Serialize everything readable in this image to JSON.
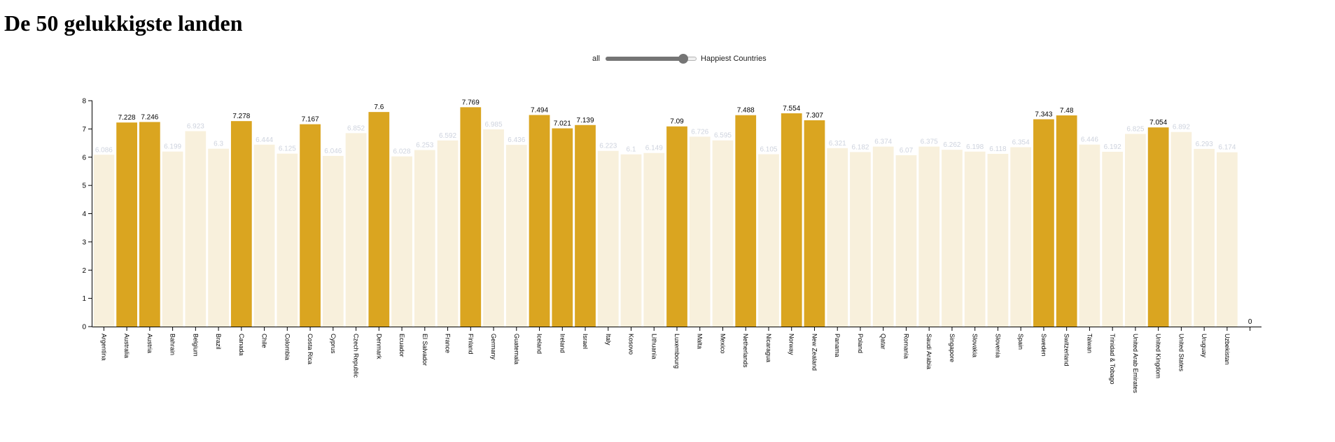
{
  "page": {
    "title": "De 50 gelukkigste landen"
  },
  "slider": {
    "left_label": "all",
    "right_label": "Happiest Countries",
    "position": 0.85
  },
  "colors": {
    "highlight": "#DAA520",
    "regular": "#F8F0DC",
    "value_label_highlight": "#000000",
    "value_label_regular": "#CED3DE",
    "axis": "#000000"
  },
  "chart_data": {
    "type": "bar",
    "title": "",
    "xlabel": "",
    "ylabel": "",
    "ylim": [
      0,
      8
    ],
    "yticks": [
      0,
      1,
      2,
      3,
      4,
      5,
      6,
      7,
      8
    ],
    "grid": false,
    "categories": [
      "Argentina",
      "Australia",
      "Austria",
      "Bahrain",
      "Belgium",
      "Brazil",
      "Canada",
      "Chile",
      "Colombia",
      "Costa Rica",
      "Cyprus",
      "Czech Republic",
      "Denmark",
      "Ecuador",
      "El Salvador",
      "France",
      "Finland",
      "Germany",
      "Guatemala",
      "Iceland",
      "Ireland",
      "Israel",
      "Italy",
      "Kosovo",
      "Lithuania",
      "Luxembourg",
      "Malta",
      "Mexico",
      "Netherlands",
      "Nicaragua",
      "Norway",
      "New Zealand",
      "Panama",
      "Poland",
      "Qatar",
      "Romania",
      "Saudi Arabia",
      "Singapore",
      "Slovakia",
      "Slovenia",
      "Spain",
      "Sweden",
      "Switzerland",
      "Taiwan",
      "Trinidad & Tobago",
      "United Arab Emirates",
      "United Kingdom",
      "United States",
      "Uruguay",
      "Uzbekistan",
      ""
    ],
    "values": [
      6.086,
      7.228,
      7.246,
      6.199,
      6.923,
      6.3,
      7.278,
      6.444,
      6.125,
      7.167,
      6.046,
      6.852,
      7.6,
      6.028,
      6.253,
      6.592,
      7.769,
      6.985,
      6.436,
      7.494,
      7.021,
      7.139,
      6.223,
      6.1,
      6.149,
      7.09,
      6.726,
      6.595,
      7.488,
      6.105,
      7.554,
      7.307,
      6.321,
      6.182,
      6.374,
      6.07,
      6.375,
      6.262,
      6.198,
      6.118,
      6.354,
      7.343,
      7.48,
      6.446,
      6.192,
      6.825,
      7.054,
      6.892,
      6.293,
      6.174,
      0
    ],
    "value_labels": [
      "6.086",
      "7.228",
      "7.246",
      "6.199",
      "6.923",
      "6.3",
      "7.278",
      "6.444",
      "6.125",
      "7.167",
      "6.046",
      "6.852",
      "7.6",
      "6.028",
      "6.253",
      "6.592",
      "7.769",
      "6.985",
      "6.436",
      "7.494",
      "7.021",
      "7.139",
      "6.223",
      "6.1",
      "6.149",
      "7.09",
      "6.726",
      "6.595",
      "7.488",
      "6.105",
      "7.554",
      "7.307",
      "6.321",
      "6.182",
      "6.374",
      "6.07",
      "6.375",
      "6.262",
      "6.198",
      "6.118",
      "6.354",
      "7.343",
      "7.48",
      "6.446",
      "6.192",
      "6.825",
      "7.054",
      "6.892",
      "6.293",
      "6.174",
      "0"
    ],
    "highlighted": [
      false,
      true,
      true,
      false,
      false,
      false,
      true,
      false,
      false,
      true,
      false,
      false,
      true,
      false,
      false,
      false,
      true,
      false,
      false,
      true,
      true,
      true,
      false,
      false,
      false,
      true,
      false,
      false,
      true,
      false,
      true,
      true,
      false,
      false,
      false,
      false,
      false,
      false,
      false,
      false,
      false,
      true,
      true,
      false,
      false,
      false,
      true,
      false,
      false,
      false,
      false
    ]
  }
}
